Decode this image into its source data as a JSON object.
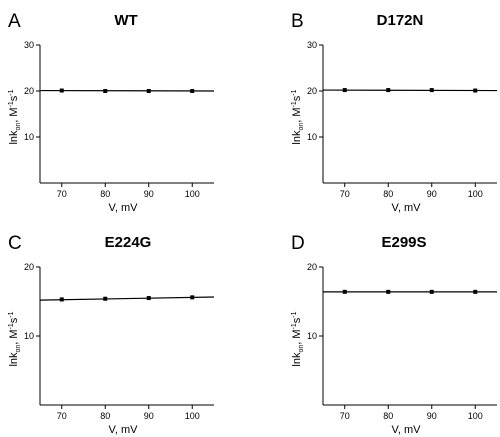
{
  "chart_data": [
    {
      "type": "line",
      "panel": "A",
      "title": "WT",
      "xlabel": "V, mV",
      "ylabel": "lnk_on, M^-1 s^-1",
      "xlim": [
        65,
        105
      ],
      "ylim": [
        0,
        30
      ],
      "xticks": [
        70,
        80,
        90,
        100
      ],
      "yticks": [
        10,
        20,
        30
      ],
      "series": [
        {
          "x": [
            70,
            80,
            90,
            100
          ],
          "y": [
            20.1,
            20.0,
            20.0,
            20.0
          ],
          "fit": [
            [
              65,
              20.1
            ],
            [
              105,
              20.0
            ]
          ]
        }
      ]
    },
    {
      "type": "line",
      "panel": "B",
      "title": "D172N",
      "xlabel": "V, mV",
      "ylabel": "lnk_on, M^-1 s^-1",
      "xlim": [
        65,
        105
      ],
      "ylim": [
        0,
        30
      ],
      "xticks": [
        70,
        80,
        90,
        100
      ],
      "yticks": [
        10,
        20,
        30
      ],
      "series": [
        {
          "x": [
            70,
            80,
            90,
            100
          ],
          "y": [
            20.2,
            20.2,
            20.2,
            20.1
          ],
          "fit": [
            [
              65,
              20.2
            ],
            [
              105,
              20.1
            ]
          ]
        }
      ]
    },
    {
      "type": "line",
      "panel": "C",
      "title": "E224G",
      "xlabel": "V, mV",
      "ylabel": "lnk_on, M^-1 s^-1",
      "xlim": [
        65,
        105
      ],
      "ylim": [
        0,
        20
      ],
      "xticks": [
        70,
        80,
        90,
        100
      ],
      "yticks": [
        10,
        20
      ],
      "series": [
        {
          "x": [
            70,
            80,
            90,
            100
          ],
          "y": [
            15.3,
            15.4,
            15.5,
            15.6
          ],
          "fit": [
            [
              65,
              15.2
            ],
            [
              105,
              15.65
            ]
          ]
        }
      ]
    },
    {
      "type": "line",
      "panel": "D",
      "title": "E299S",
      "xlabel": "V, mV",
      "ylabel": "lnk_on, M^-1 s^-1",
      "xlim": [
        65,
        105
      ],
      "ylim": [
        0,
        20
      ],
      "xticks": [
        70,
        80,
        90,
        100
      ],
      "yticks": [
        10,
        20
      ],
      "series": [
        {
          "x": [
            70,
            80,
            90,
            100
          ],
          "y": [
            16.4,
            16.4,
            16.4,
            16.4
          ],
          "fit": [
            [
              65,
              16.4
            ],
            [
              105,
              16.4
            ]
          ]
        }
      ]
    }
  ]
}
